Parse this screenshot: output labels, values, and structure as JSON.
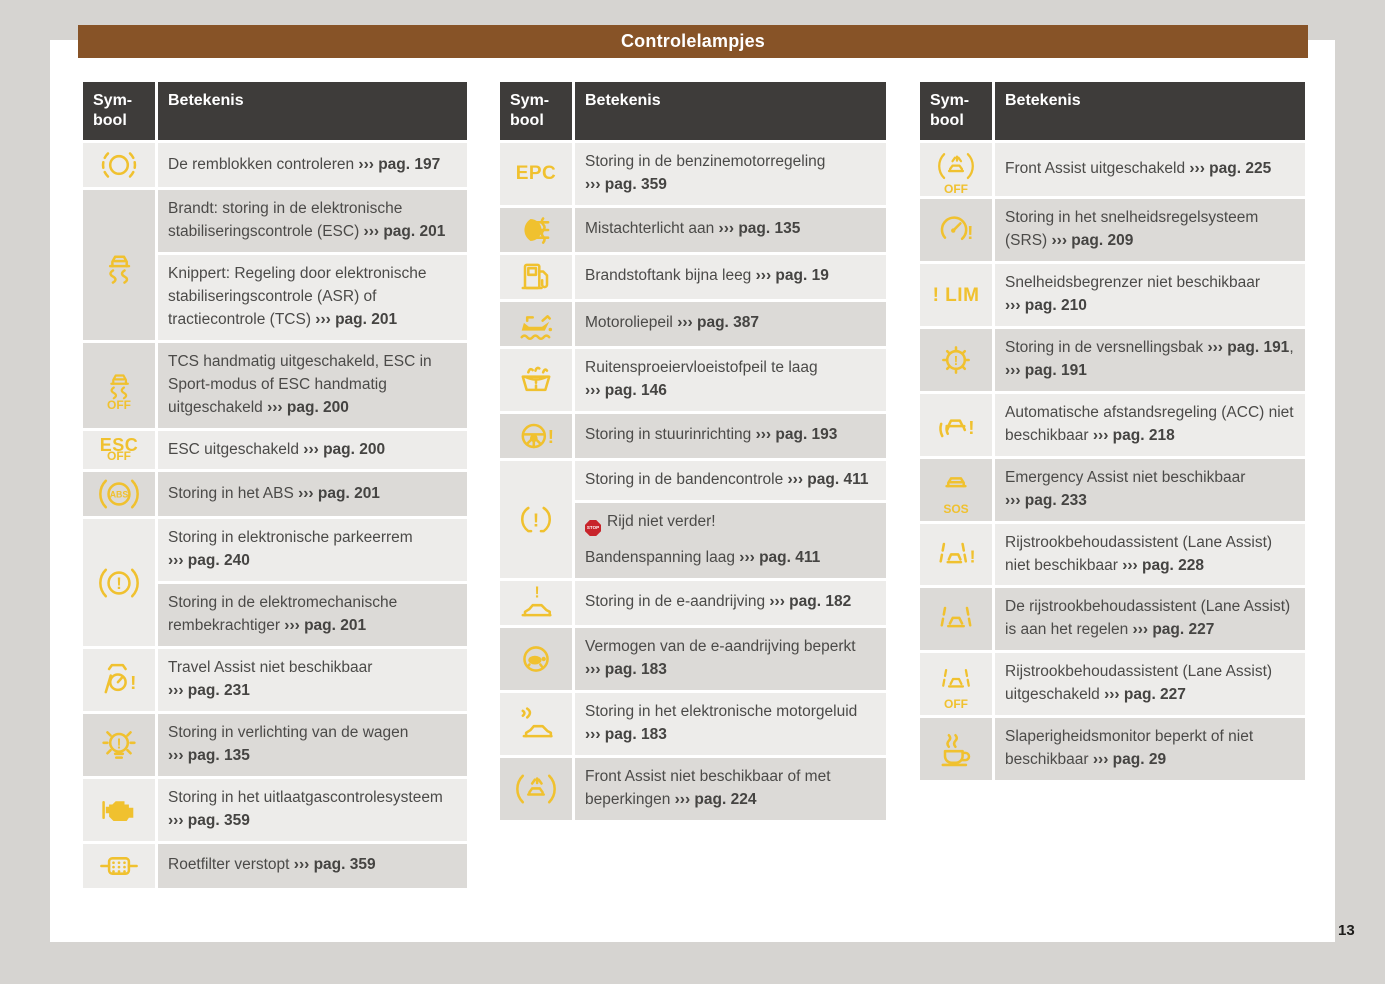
{
  "page": {
    "title": "Controlelampjes",
    "page_number": "13"
  },
  "colors": {
    "accent_yellow": "#f0c12f",
    "title_brown": "#875327",
    "table_header": "#3e3c3a",
    "row_light": "#edecea",
    "row_dark": "#dcdad7",
    "stop_red": "#c8242b"
  },
  "table_header": {
    "symbol": "Sym-bool",
    "meaning": "Betekenis"
  },
  "ref_prefix": "›››",
  "stop_label": "STOP",
  "tables": [
    {
      "rows": [
        {
          "icon": "brake-pads-icon",
          "icon_shade": "L",
          "cells": [
            {
              "shade": "L",
              "segs": [
                [
                  "t",
                  "De remblokken controleren "
                ],
                [
                  "r",
                  "pag. 197"
                ]
              ]
            }
          ]
        },
        {
          "icon": "esc-icon",
          "icon_shade": "D",
          "cells": [
            {
              "shade": "D",
              "segs": [
                [
                  "t",
                  "Brandt: storing in de elektronische stabiliseringscontrole (ESC) "
                ],
                [
                  "r",
                  "pag. 201"
                ]
              ]
            },
            {
              "shade": "L",
              "segs": [
                [
                  "t",
                  "Knippert: Regeling door elektronische stabiliseringscontrole (ASR) of tractiecontrole (TCS) "
                ],
                [
                  "r",
                  "pag. 201"
                ]
              ]
            }
          ]
        },
        {
          "icon": "esc-off-icon",
          "icon_sublabel": "OFF",
          "icon_shade": "D",
          "cells": [
            {
              "shade": "D",
              "segs": [
                [
                  "t",
                  "TCS handmatig uitgeschakeld, ESC in Sport-modus of ESC handmatig uitgeschakeld "
                ],
                [
                  "r",
                  "pag. 200"
                ]
              ]
            }
          ]
        },
        {
          "icon": "esc-off-text-icon",
          "icon_label": "ESC",
          "icon_sublabel": "OFF",
          "icon_shade": "L",
          "cells": [
            {
              "shade": "L",
              "segs": [
                [
                  "t",
                  "ESC uitgeschakeld "
                ],
                [
                  "r",
                  "pag. 200"
                ]
              ]
            }
          ]
        },
        {
          "icon": "abs-icon",
          "icon_shade": "D",
          "cells": [
            {
              "shade": "D",
              "segs": [
                [
                  "t",
                  "Storing in het ABS "
                ],
                [
                  "r",
                  "pag. 201"
                ]
              ]
            }
          ]
        },
        {
          "icon": "brake-warning-icon",
          "icon_shade": "L",
          "cells": [
            {
              "shade": "L",
              "segs": [
                [
                  "t",
                  "Storing in elektronische parkeerrem "
                ],
                [
                  "r",
                  "pag. 240"
                ]
              ]
            },
            {
              "shade": "D",
              "segs": [
                [
                  "t",
                  "Storing in de elektromechanische rembekrachtiger "
                ],
                [
                  "r",
                  "pag. 201"
                ]
              ]
            }
          ]
        },
        {
          "icon": "travel-assist-icon",
          "icon_shade": "L",
          "cells": [
            {
              "shade": "L",
              "segs": [
                [
                  "t",
                  "Travel Assist niet beschikbaar "
                ],
                [
                  "r",
                  "pag. 231"
                ]
              ]
            }
          ]
        },
        {
          "icon": "lights-warning-icon",
          "icon_shade": "D",
          "cells": [
            {
              "shade": "D",
              "segs": [
                [
                  "t",
                  "Storing in verlichting van de wagen "
                ],
                [
                  "r",
                  "pag. 135"
                ]
              ]
            }
          ]
        },
        {
          "icon": "engine-icon",
          "icon_shade": "L",
          "cells": [
            {
              "shade": "L",
              "segs": [
                [
                  "t",
                  "Storing in het uitlaatgascontrolesysteem "
                ],
                [
                  "r",
                  "pag. 359"
                ]
              ]
            }
          ]
        },
        {
          "icon": "particulate-filter-icon",
          "icon_shade": "L",
          "cells": [
            {
              "shade": "D",
              "segs": [
                [
                  "t",
                  "Roetfilter verstopt "
                ],
                [
                  "r",
                  "pag. 359"
                ]
              ]
            }
          ]
        }
      ]
    },
    {
      "rows": [
        {
          "icon": "epc-icon",
          "icon_label": "EPC",
          "icon_shade": "L",
          "cells": [
            {
              "shade": "L",
              "segs": [
                [
                  "t",
                  "Storing in de benzinemotorregeling "
                ],
                [
                  "r",
                  "pag. 359"
                ]
              ]
            }
          ]
        },
        {
          "icon": "rear-fog-light-icon",
          "icon_shade": "D",
          "cells": [
            {
              "shade": "D",
              "segs": [
                [
                  "t",
                  "Mistachterlicht aan "
                ],
                [
                  "r",
                  "pag. 135"
                ]
              ]
            }
          ]
        },
        {
          "icon": "fuel-pump-icon",
          "icon_shade": "L",
          "cells": [
            {
              "shade": "L",
              "segs": [
                [
                  "t",
                  "Brandstoftank bijna leeg "
                ],
                [
                  "r",
                  "pag. 19"
                ]
              ]
            }
          ]
        },
        {
          "icon": "oil-can-icon",
          "icon_shade": "D",
          "cells": [
            {
              "shade": "D",
              "segs": [
                [
                  "t",
                  "Motoroliepeil "
                ],
                [
                  "r",
                  "pag. 387"
                ]
              ]
            }
          ]
        },
        {
          "icon": "washer-fluid-icon",
          "icon_shade": "L",
          "cells": [
            {
              "shade": "L",
              "segs": [
                [
                  "t",
                  "Ruitensproeiervloeistofpeil te laag "
                ],
                [
                  "r",
                  "pag. 146"
                ]
              ]
            }
          ]
        },
        {
          "icon": "steering-warning-icon",
          "icon_shade": "D",
          "cells": [
            {
              "shade": "D",
              "segs": [
                [
                  "t",
                  "Storing in stuurinrichting "
                ],
                [
                  "r",
                  "pag. 193"
                ]
              ]
            }
          ]
        },
        {
          "icon": "tyre-pressure-icon",
          "icon_shade": "L",
          "cells": [
            {
              "shade": "L",
              "segs": [
                [
                  "t",
                  "Storing in de bandencontrole "
                ],
                [
                  "r",
                  "pag. 411"
                ]
              ]
            },
            {
              "shade": "D",
              "segs": [
                [
                  "s",
                  "STOP"
                ],
                [
                  "t",
                  "Rijd niet verder!"
                ],
                [
                  "g",
                  ""
                ],
                [
                  "t",
                  "Bandenspanning laag "
                ],
                [
                  "r",
                  "pag. 411"
                ]
              ]
            }
          ]
        },
        {
          "icon": "e-drive-warning-icon",
          "icon_shade": "L",
          "cells": [
            {
              "shade": "L",
              "segs": [
                [
                  "t",
                  "Storing in de e-aandrijving "
                ],
                [
                  "r",
                  "pag. 182"
                ]
              ]
            }
          ]
        },
        {
          "icon": "turtle-icon",
          "icon_shade": "D",
          "cells": [
            {
              "shade": "D",
              "segs": [
                [
                  "t",
                  "Vermogen van de e-aandrijving beperkt "
                ],
                [
                  "r",
                  "pag. 183"
                ]
              ]
            }
          ]
        },
        {
          "icon": "car-sound-icon",
          "icon_shade": "L",
          "cells": [
            {
              "shade": "L",
              "segs": [
                [
                  "t",
                  "Storing in het elektronische motorgeluid "
                ],
                [
                  "r",
                  "pag. 183"
                ]
              ]
            }
          ]
        },
        {
          "icon": "front-assist-icon",
          "icon_shade": "D",
          "cells": [
            {
              "shade": "D",
              "segs": [
                [
                  "t",
                  "Front Assist niet beschikbaar of met beperkingen "
                ],
                [
                  "r",
                  "pag. 224"
                ]
              ]
            }
          ]
        }
      ]
    },
    {
      "rows": [
        {
          "icon": "front-assist-off-icon",
          "icon_sublabel": "OFF",
          "icon_shade": "L",
          "cells": [
            {
              "shade": "L",
              "segs": [
                [
                  "t",
                  "Front Assist uitgeschakeld "
                ],
                [
                  "r",
                  "pag. 225"
                ]
              ]
            }
          ]
        },
        {
          "icon": "cruise-control-warning-icon",
          "icon_shade": "D",
          "cells": [
            {
              "shade": "D",
              "segs": [
                [
                  "t",
                  "Storing in het snelheidsregelsysteem (SRS) "
                ],
                [
                  "r",
                  "pag. 209"
                ]
              ]
            }
          ]
        },
        {
          "icon": "speed-limiter-icon",
          "icon_label": "! LIM",
          "icon_shade": "L",
          "cells": [
            {
              "shade": "L",
              "segs": [
                [
                  "t",
                  "Snelheidsbegrenzer niet beschikbaar "
                ],
                [
                  "r",
                  "pag. 210"
                ]
              ]
            }
          ]
        },
        {
          "icon": "gearbox-warning-icon",
          "icon_shade": "D",
          "cells": [
            {
              "shade": "D",
              "segs": [
                [
                  "t",
                  "Storing in de versnellingsbak "
                ],
                [
                  "r",
                  "pag. 191"
                ],
                [
                  "t",
                  ", "
                ],
                [
                  "r",
                  "pag. 191"
                ]
              ]
            }
          ]
        },
        {
          "icon": "acc-warning-icon",
          "icon_shade": "L",
          "cells": [
            {
              "shade": "L",
              "segs": [
                [
                  "t",
                  "Automatische afstandsregeling (ACC) niet beschikbaar "
                ],
                [
                  "r",
                  "pag. 218"
                ]
              ]
            }
          ]
        },
        {
          "icon": "emergency-assist-icon",
          "icon_sublabel": "SOS",
          "icon_shade": "D",
          "cells": [
            {
              "shade": "D",
              "segs": [
                [
                  "t",
                  "Emergency Assist niet beschikbaar "
                ],
                [
                  "r",
                  "pag. 233"
                ]
              ]
            }
          ]
        },
        {
          "icon": "lane-assist-warning-icon",
          "icon_shade": "L",
          "cells": [
            {
              "shade": "L",
              "segs": [
                [
                  "t",
                  "Rijstrookbehoudassistent (Lane Assist) niet beschikbaar "
                ],
                [
                  "r",
                  "pag. 228"
                ]
              ]
            }
          ]
        },
        {
          "icon": "lane-assist-icon",
          "icon_shade": "D",
          "cells": [
            {
              "shade": "D",
              "segs": [
                [
                  "t",
                  "De rijstrookbehoudassistent (Lane Assist) is aan het regelen "
                ],
                [
                  "r",
                  "pag. 227"
                ]
              ]
            }
          ]
        },
        {
          "icon": "lane-assist-off-icon",
          "icon_sublabel": "OFF",
          "icon_shade": "L",
          "cells": [
            {
              "shade": "L",
              "segs": [
                [
                  "t",
                  "Rijstrookbehoudassistent (Lane Assist) uitgeschakeld "
                ],
                [
                  "r",
                  "pag. 227"
                ]
              ]
            }
          ]
        },
        {
          "icon": "drowsiness-monitor-icon",
          "icon_shade": "D",
          "cells": [
            {
              "shade": "D",
              "segs": [
                [
                  "t",
                  "Slaperigheidsmonitor beperkt of niet beschikbaar "
                ],
                [
                  "r",
                  "pag. 29"
                ]
              ]
            }
          ]
        }
      ]
    }
  ]
}
